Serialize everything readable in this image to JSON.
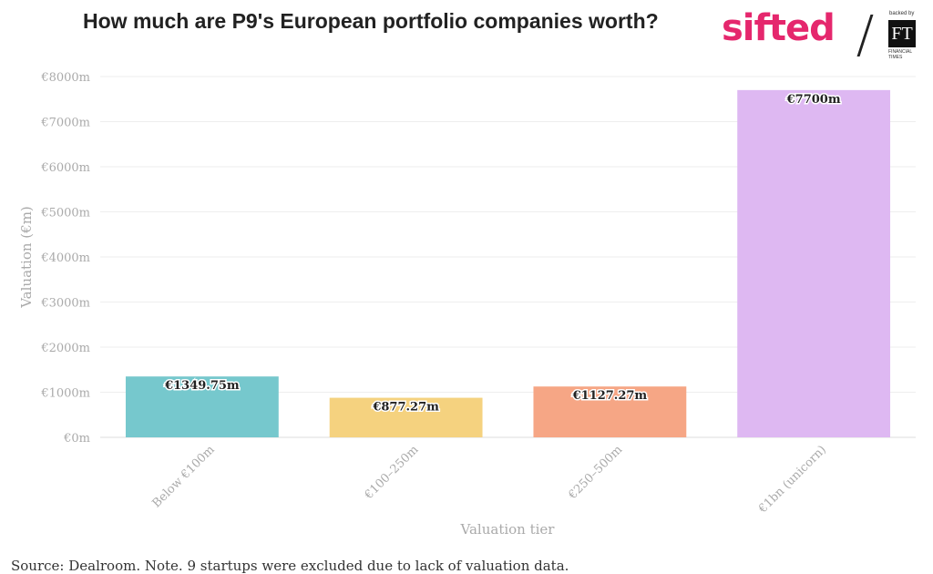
{
  "header": {
    "title": "How much are P9's European portfolio companies worth?"
  },
  "logo": {
    "brand": "sifted",
    "backed_by": "backed by",
    "ft_mark": "FT",
    "ft_name": "FINANCIAL TIMES",
    "icon": "sifted-ft-logo"
  },
  "footer": {
    "source": "Source: Dealroom. Note. 9 startups were excluded due to lack of valuation data."
  },
  "colors": {
    "bar_below_100m": "#76c8cd",
    "bar_100_250m": "#f5d27f",
    "bar_250_500m": "#f6a685",
    "bar_unicorn": "#deb8f2",
    "grid": "#eeeeee",
    "axis_text": "#aaaaaa"
  },
  "chart_data": {
    "type": "bar",
    "title": "How much are P9's European portfolio companies worth?",
    "xlabel": "Valuation tier",
    "ylabel": "Valuation (€m)",
    "categories": [
      "Below €100m",
      "€100–250m",
      "€250–500m",
      "€1bn (unicorn)"
    ],
    "values": [
      1349.75,
      877.27,
      1127.27,
      7700
    ],
    "data_labels": [
      "€1349.75m",
      "€877.27m",
      "€1127.27m",
      "€7700m"
    ],
    "ylim": [
      0,
      8000
    ],
    "yticks": [
      0,
      1000,
      2000,
      3000,
      4000,
      5000,
      6000,
      7000,
      8000
    ],
    "ytick_labels": [
      "€0m",
      "€1000m",
      "€2000m",
      "€3000m",
      "€4000m",
      "€5000m",
      "€6000m",
      "€7000m",
      "€8000m"
    ],
    "grid": true,
    "legend": "none"
  }
}
